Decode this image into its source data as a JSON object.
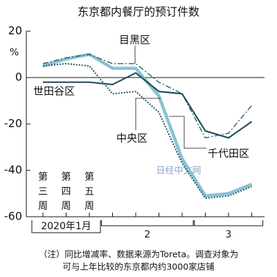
{
  "chart_data": {
    "type": "line",
    "title": "东京都内餐厅的预订件数",
    "y_unit": "%",
    "categories": [
      "第三周",
      "第四周",
      "第五周",
      null,
      null,
      null,
      null,
      null,
      null,
      null
    ],
    "groups": [
      {
        "label": "2020年1月",
        "from": 0,
        "to": 2
      },
      {
        "label": "2",
        "from": 3,
        "to": 6
      },
      {
        "label": "3",
        "from": 7,
        "to": 9
      }
    ],
    "series": [
      {
        "name": "世田谷区",
        "color": "#1d4f5e",
        "style": "solid",
        "values": [
          -2,
          -2,
          -2,
          -3,
          2,
          -6,
          -7,
          -23,
          -26,
          -19
        ]
      },
      {
        "name": "目黑区",
        "color": "#1d4f5e",
        "style": "dashdot",
        "values": [
          6,
          8.5,
          10,
          6,
          6,
          -2,
          -7,
          -26,
          -24,
          -12
        ]
      },
      {
        "name": "中央区",
        "color": "#86c3d1",
        "style": "thick",
        "values": [
          5,
          8,
          10,
          4,
          4,
          -8,
          -35,
          -51,
          -50,
          -46
        ]
      },
      {
        "name": "千代田区",
        "color": "#1d4f5e",
        "style": "dotted",
        "values": [
          5,
          6,
          5,
          -7,
          -6,
          -15,
          -37,
          -52,
          -51,
          -47
        ]
      }
    ],
    "ylim": [
      -60,
      20
    ],
    "yticks": [
      -60,
      -40,
      -20,
      0,
      20
    ],
    "watermark": "日经中文网",
    "notes": [
      "（注）同比增减率、数据来源为Toreta。调查对象为",
      "可与上年比较的东京都内约3000家店铺"
    ]
  }
}
